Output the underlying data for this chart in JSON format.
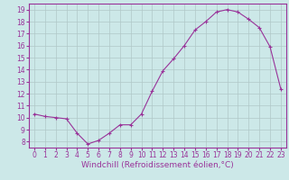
{
  "x": [
    0,
    1,
    2,
    3,
    4,
    5,
    6,
    7,
    8,
    9,
    10,
    11,
    12,
    13,
    14,
    15,
    16,
    17,
    18,
    19,
    20,
    21,
    22,
    23
  ],
  "y": [
    10.3,
    10.1,
    10.0,
    9.9,
    8.7,
    7.8,
    8.1,
    8.7,
    9.4,
    9.4,
    10.3,
    12.2,
    13.9,
    14.9,
    16.0,
    17.3,
    18.0,
    18.8,
    19.0,
    18.8,
    18.2,
    17.5,
    15.9,
    12.4
  ],
  "x_ticks": [
    0,
    1,
    2,
    3,
    4,
    5,
    6,
    7,
    8,
    9,
    10,
    11,
    12,
    13,
    14,
    15,
    16,
    17,
    18,
    19,
    20,
    21,
    22,
    23
  ],
  "y_ticks": [
    8,
    9,
    10,
    11,
    12,
    13,
    14,
    15,
    16,
    17,
    18,
    19
  ],
  "ylim": [
    7.5,
    19.5
  ],
  "xlim": [
    -0.5,
    23.5
  ],
  "line_color": "#993399",
  "marker": "+",
  "bg_color": "#cce8e8",
  "grid_color": "#b0c8c8",
  "xlabel": "Windchill (Refroidissement éolien,°C)",
  "xlabel_color": "#993399",
  "tick_color": "#993399",
  "tick_fontsize": 5.5,
  "xlabel_fontsize": 6.5,
  "spine_color": "#993399"
}
